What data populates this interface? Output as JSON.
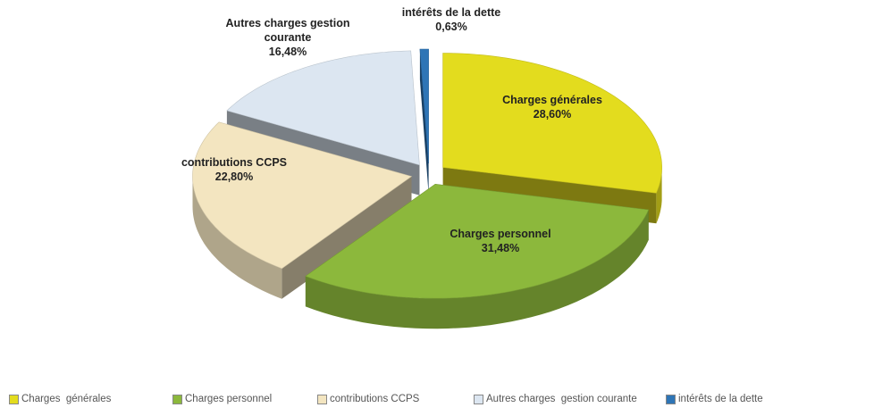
{
  "chart_data": {
    "type": "pie3d",
    "categories": [
      "Charges  générales",
      "Charges personnel",
      "contributions CCPS",
      "Autres charges  gestion courante",
      "intérêts de la dette"
    ],
    "values": [
      28.6,
      31.48,
      22.8,
      16.48,
      0.63
    ],
    "value_labels": [
      "28,60%",
      "31,48%",
      "22,80%",
      "16,48%",
      "0,63%"
    ],
    "colors": [
      "#e3dc1e",
      "#8cb83c",
      "#f3e5c0",
      "#dce6f1",
      "#2e75b6"
    ],
    "legend": "bottom"
  }
}
